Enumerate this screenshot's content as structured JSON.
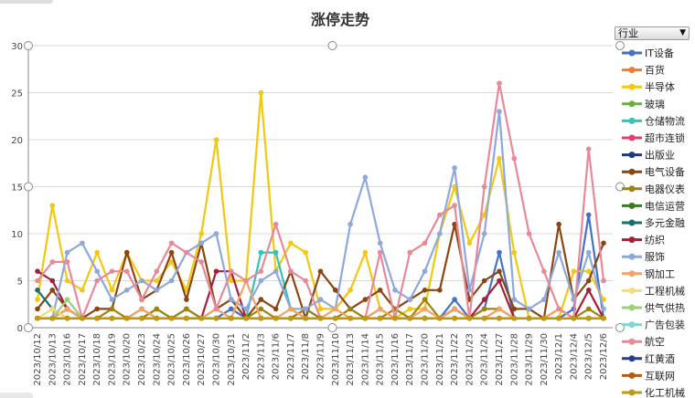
{
  "dropdown": {
    "label": "行业"
  },
  "chart_data": {
    "type": "line",
    "title": "涨停走势",
    "xlabel": "",
    "ylabel": "",
    "ylim": [
      0,
      30
    ],
    "yticks": [
      0,
      5,
      10,
      15,
      20,
      25,
      30
    ],
    "grid": true,
    "legend_position": "right",
    "categories": [
      "2023/10/12",
      "2023/10/13",
      "2023/10/16",
      "2023/10/17",
      "2023/10/18",
      "2023/10/19",
      "2023/10/20",
      "2023/10/23",
      "2023/10/24",
      "2023/10/25",
      "2023/10/26",
      "2023/10/27",
      "2023/10/30",
      "2023/10/31",
      "2023/11/2",
      "2023/11/3",
      "2023/11/6",
      "2023/11/7",
      "2023/11/8",
      "2023/11/9",
      "2023/11/10",
      "2023/11/13",
      "2023/11/14",
      "2023/11/15",
      "2023/11/16",
      "2023/11/17",
      "2023/11/20",
      "2023/11/21",
      "2023/11/22",
      "2023/11/23",
      "2023/11/24",
      "2023/11/27",
      "2023/11/28",
      "2023/11/29",
      "2023/11/30",
      "2023/12/1",
      "2023/12/4",
      "2023/12/5",
      "2023/12/6"
    ],
    "x_tick_labels": [
      "2023/10/12",
      "2023/10/13",
      "2023/10/16",
      "2023/10/17",
      "2023/10/18",
      "2023/10/19",
      "2023/10/20",
      "2023/10/23",
      "2023/10/24",
      "2023/10/25",
      "2023/10/26",
      "2023/10/27",
      "2023/10/30",
      "2023/10/31",
      "2023/11/2",
      "2023/11/3",
      "2023/11/6",
      "2023/11/7",
      "2023/11/8",
      "2023/11/9",
      "2023/11/10",
      "2023/11/13",
      "2023/11/14",
      "2023/11/15",
      "2023/11/16",
      "2023/11/17",
      "2023/11/20",
      "2023/11/21",
      "2023/11/22",
      "2023/11/23",
      "2023/11/24",
      "2023/11/27",
      "2023/11/28",
      "2023/11/29",
      "2023/11/30",
      "2023/12/1",
      "2023/12/4",
      "2023/12/5",
      "2023/12/6"
    ],
    "series": [
      {
        "name": "IT设备",
        "color": "#4472c4",
        "values": [
          1,
          1,
          2,
          1,
          1,
          1,
          1,
          2,
          1,
          1,
          2,
          1,
          1,
          2,
          1,
          1,
          1,
          1,
          2,
          1,
          1,
          1,
          1,
          2,
          1,
          1,
          1,
          1,
          3,
          1,
          2,
          8,
          1,
          1,
          1,
          1,
          2,
          12,
          1
        ]
      },
      {
        "name": "百货",
        "color": "#ed7d31",
        "values": [
          1,
          1,
          1,
          1,
          1,
          1,
          1,
          1,
          1,
          1,
          1,
          1,
          1,
          1,
          1,
          1,
          1,
          1,
          1,
          1,
          1,
          1,
          1,
          1,
          1,
          1,
          1,
          1,
          1,
          1,
          1,
          1,
          1,
          1,
          1,
          1,
          1,
          1,
          1
        ]
      },
      {
        "name": "半导体",
        "color": "#f2c811",
        "values": [
          3,
          13,
          5,
          4,
          8,
          4,
          8,
          5,
          5,
          7,
          4,
          10,
          20,
          5,
          5,
          25,
          6,
          9,
          8,
          2,
          2,
          4,
          8,
          2,
          1,
          2,
          2,
          10,
          15,
          9,
          12,
          18,
          8,
          1,
          1,
          1,
          6,
          6,
          3
        ]
      },
      {
        "name": "玻璃",
        "color": "#70ad47",
        "values": [
          1,
          1,
          1,
          1,
          1,
          1,
          1,
          1,
          2,
          1,
          1,
          1,
          2,
          1,
          1,
          1,
          1,
          1,
          1,
          1,
          1,
          1,
          1,
          1,
          1,
          1,
          1,
          1,
          2,
          1,
          1,
          2,
          1,
          1,
          1,
          1,
          1,
          1,
          1
        ]
      },
      {
        "name": "仓储物流",
        "color": "#2ec4c0",
        "values": [
          1,
          1,
          1,
          1,
          1,
          1,
          1,
          1,
          1,
          1,
          1,
          1,
          1,
          1,
          1,
          8,
          8,
          2,
          1,
          1,
          1,
          1,
          1,
          1,
          1,
          1,
          1,
          1,
          1,
          1,
          1,
          1,
          1,
          1,
          1,
          1,
          1,
          1,
          1
        ]
      },
      {
        "name": "超市连锁",
        "color": "#e0406a",
        "values": [
          1,
          1,
          1,
          1,
          1,
          1,
          1,
          1,
          1,
          1,
          1,
          1,
          1,
          1,
          1,
          1,
          1,
          1,
          1,
          1,
          1,
          1,
          1,
          1,
          1,
          1,
          1,
          1,
          2,
          1,
          1,
          1,
          1,
          1,
          1,
          1,
          1,
          1,
          1
        ]
      },
      {
        "name": "出版业",
        "color": "#1f3a7a",
        "values": [
          1,
          1,
          1,
          1,
          1,
          1,
          1,
          1,
          1,
          1,
          1,
          1,
          1,
          1,
          1,
          1,
          1,
          1,
          1,
          1,
          1,
          1,
          1,
          1,
          1,
          1,
          1,
          1,
          1,
          1,
          1,
          1,
          1,
          1,
          1,
          1,
          1,
          1,
          1
        ]
      },
      {
        "name": "电气设备",
        "color": "#8b4513",
        "values": [
          2,
          4,
          2,
          1,
          2,
          2,
          8,
          3,
          4,
          8,
          3,
          9,
          2,
          3,
          1,
          3,
          2,
          6,
          1,
          6,
          4,
          2,
          3,
          4,
          2,
          3,
          4,
          4,
          11,
          3,
          5,
          6,
          2,
          2,
          1,
          11,
          3,
          5,
          9
        ]
      },
      {
        "name": "电器仪表",
        "color": "#a0820e",
        "values": [
          1,
          1,
          2,
          1,
          1,
          2,
          1,
          1,
          2,
          1,
          2,
          1,
          1,
          1,
          1,
          2,
          1,
          1,
          2,
          1,
          1,
          2,
          1,
          1,
          2,
          1,
          3,
          1,
          2,
          1,
          2,
          2,
          1,
          1,
          1,
          2,
          1,
          2,
          1
        ]
      },
      {
        "name": "电信运营",
        "color": "#3c7a28",
        "values": [
          1,
          1,
          1,
          1,
          1,
          1,
          1,
          1,
          1,
          1,
          1,
          1,
          1,
          1,
          1,
          1,
          1,
          1,
          1,
          1,
          1,
          1,
          1,
          1,
          1,
          1,
          1,
          1,
          1,
          1,
          1,
          1,
          1,
          1,
          1,
          1,
          1,
          1,
          1
        ]
      },
      {
        "name": "多元金融",
        "color": "#1a6e6e",
        "values": [
          4,
          2,
          1,
          1,
          1,
          1,
          1,
          1,
          1,
          1,
          1,
          1,
          1,
          1,
          1,
          1,
          1,
          1,
          1,
          1,
          1,
          1,
          1,
          1,
          1,
          1,
          1,
          1,
          1,
          1,
          1,
          1,
          1,
          1,
          1,
          1,
          1,
          1,
          1
        ]
      },
      {
        "name": "纺织",
        "color": "#a51e3a",
        "values": [
          6,
          5,
          2,
          1,
          1,
          1,
          1,
          1,
          1,
          1,
          1,
          1,
          6,
          6,
          1,
          1,
          1,
          1,
          1,
          1,
          1,
          1,
          1,
          1,
          1,
          1,
          1,
          1,
          2,
          1,
          3,
          5,
          1,
          1,
          1,
          1,
          1,
          4,
          1
        ]
      },
      {
        "name": "服饰",
        "color": "#8fa8dc",
        "values": [
          1,
          1,
          8,
          9,
          6,
          3,
          4,
          5,
          4,
          5,
          8,
          9,
          10,
          3,
          2,
          5,
          6,
          2,
          2,
          3,
          2,
          11,
          16,
          9,
          4,
          3,
          6,
          10,
          17,
          4,
          10,
          23,
          3,
          2,
          3,
          8,
          3,
          8,
          2
        ]
      },
      {
        "name": "钢加工",
        "color": "#f0a46a",
        "values": [
          1,
          1,
          2,
          1,
          1,
          1,
          1,
          2,
          1,
          1,
          1,
          1,
          2,
          1,
          5,
          1,
          1,
          2,
          1,
          1,
          2,
          1,
          1,
          2,
          1,
          1,
          2,
          1,
          2,
          1,
          1,
          2,
          1,
          1,
          1,
          2,
          1,
          1,
          1
        ]
      },
      {
        "name": "工程机械",
        "color": "#f7dc6f",
        "values": [
          1,
          2,
          1,
          1,
          1,
          1,
          1,
          1,
          1,
          1,
          1,
          1,
          1,
          1,
          1,
          1,
          1,
          1,
          1,
          1,
          1,
          1,
          1,
          1,
          1,
          1,
          1,
          1,
          1,
          1,
          1,
          1,
          1,
          1,
          1,
          1,
          1,
          1,
          1
        ]
      },
      {
        "name": "供气供热",
        "color": "#9bcf7c",
        "values": [
          1,
          1,
          3,
          1,
          1,
          1,
          1,
          1,
          1,
          1,
          1,
          1,
          1,
          1,
          1,
          1,
          1,
          1,
          1,
          1,
          1,
          1,
          1,
          1,
          1,
          1,
          1,
          1,
          1,
          1,
          1,
          1,
          1,
          1,
          1,
          1,
          1,
          1,
          1
        ]
      },
      {
        "name": "广告包装",
        "color": "#7fd6d4",
        "values": [
          1,
          1,
          1,
          1,
          1,
          1,
          1,
          1,
          1,
          1,
          1,
          1,
          1,
          1,
          1,
          1,
          1,
          1,
          1,
          1,
          1,
          1,
          1,
          1,
          1,
          1,
          1,
          1,
          1,
          1,
          1,
          1,
          1,
          1,
          1,
          1,
          1,
          1,
          1
        ]
      },
      {
        "name": "航空",
        "color": "#e8899a",
        "values": [
          5,
          7,
          7,
          1,
          5,
          6,
          6,
          3,
          6,
          9,
          8,
          7,
          2,
          6,
          5,
          6,
          11,
          6,
          5,
          1,
          1,
          1,
          1,
          8,
          1,
          8,
          9,
          12,
          13,
          1,
          15,
          26,
          18,
          10,
          6,
          2,
          1,
          19,
          5
        ]
      },
      {
        "name": "红黄酒",
        "color": "#23408e",
        "values": [
          1,
          1,
          1,
          1,
          1,
          1,
          1,
          1,
          1,
          1,
          1,
          1,
          1,
          1,
          1,
          1,
          1,
          1,
          1,
          1,
          1,
          1,
          1,
          1,
          1,
          1,
          1,
          1,
          1,
          1,
          1,
          1,
          1,
          1,
          1,
          1,
          1,
          1,
          1
        ]
      },
      {
        "name": "互联网",
        "color": "#b85b12",
        "values": [
          1,
          1,
          1,
          1,
          1,
          1,
          1,
          1,
          1,
          1,
          1,
          1,
          1,
          1,
          1,
          1,
          1,
          1,
          1,
          1,
          1,
          1,
          1,
          1,
          1,
          1,
          1,
          1,
          1,
          1,
          1,
          1,
          1,
          1,
          1,
          1,
          1,
          1,
          1
        ]
      },
      {
        "name": "化工机械",
        "color": "#c09a10",
        "values": [
          1,
          1,
          1,
          1,
          1,
          1,
          1,
          1,
          1,
          1,
          1,
          1,
          1,
          1,
          1,
          1,
          1,
          1,
          1,
          1,
          1,
          1,
          1,
          1,
          1,
          1,
          1,
          1,
          1,
          1,
          1,
          1,
          1,
          1,
          1,
          1,
          1,
          1,
          1
        ]
      }
    ]
  }
}
